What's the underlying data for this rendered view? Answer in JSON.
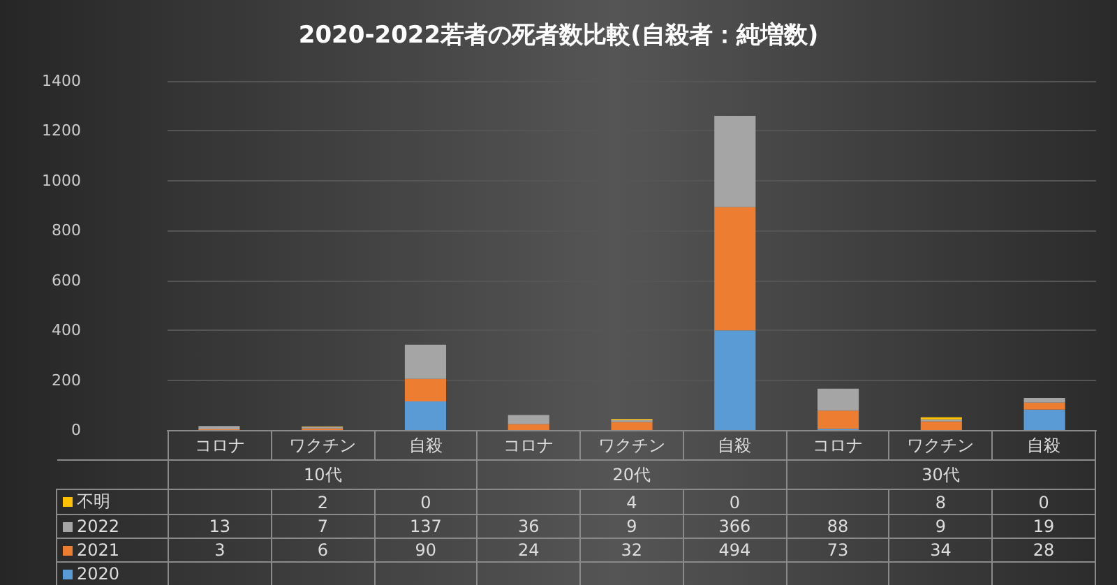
{
  "chart_data": {
    "type": "bar",
    "stacked": true,
    "title": "2020-2022若者の死者数比較(自殺者：純増数)",
    "categories": [
      "コロナ",
      "ワクチン",
      "自殺",
      "コロナ",
      "ワクチン",
      "自殺",
      "コロナ",
      "ワクチン",
      "自殺"
    ],
    "annotations": [
      "10代",
      "20代",
      "30代"
    ],
    "series": [
      {
        "name": "2020",
        "color": "#5b9bd5",
        "values": [
          0,
          null,
          115,
          null,
          null,
          400,
          5,
          null,
          82
        ],
        "value_labels": [
          null,
          null,
          null,
          null,
          null,
          null,
          null,
          null,
          null
        ]
      },
      {
        "name": "2021",
        "color": "#ed7d31",
        "values": [
          3,
          6,
          90,
          24,
          32,
          494,
          73,
          34,
          28
        ],
        "value_labels": [
          "3",
          "6",
          "90",
          "24",
          "32",
          "494",
          "73",
          "34",
          "28"
        ]
      },
      {
        "name": "2022",
        "color": "#a5a5a5",
        "values": [
          13,
          7,
          137,
          36,
          9,
          366,
          88,
          9,
          19
        ],
        "value_labels": [
          "13",
          "7",
          "137",
          "36",
          "9",
          "366",
          "88",
          "9",
          "19"
        ]
      },
      {
        "name": "不明",
        "color": "#ffc000",
        "values": [
          null,
          2,
          0,
          null,
          4,
          0,
          null,
          8,
          0
        ],
        "value_labels": [
          null,
          "2",
          "0",
          null,
          "4",
          "0",
          null,
          "8",
          "0"
        ]
      }
    ],
    "ylim": [
      0,
      1400
    ],
    "yticks": [
      0,
      200,
      400,
      600,
      800,
      1000,
      1200,
      1400
    ],
    "grid": "y",
    "legend": "left"
  }
}
